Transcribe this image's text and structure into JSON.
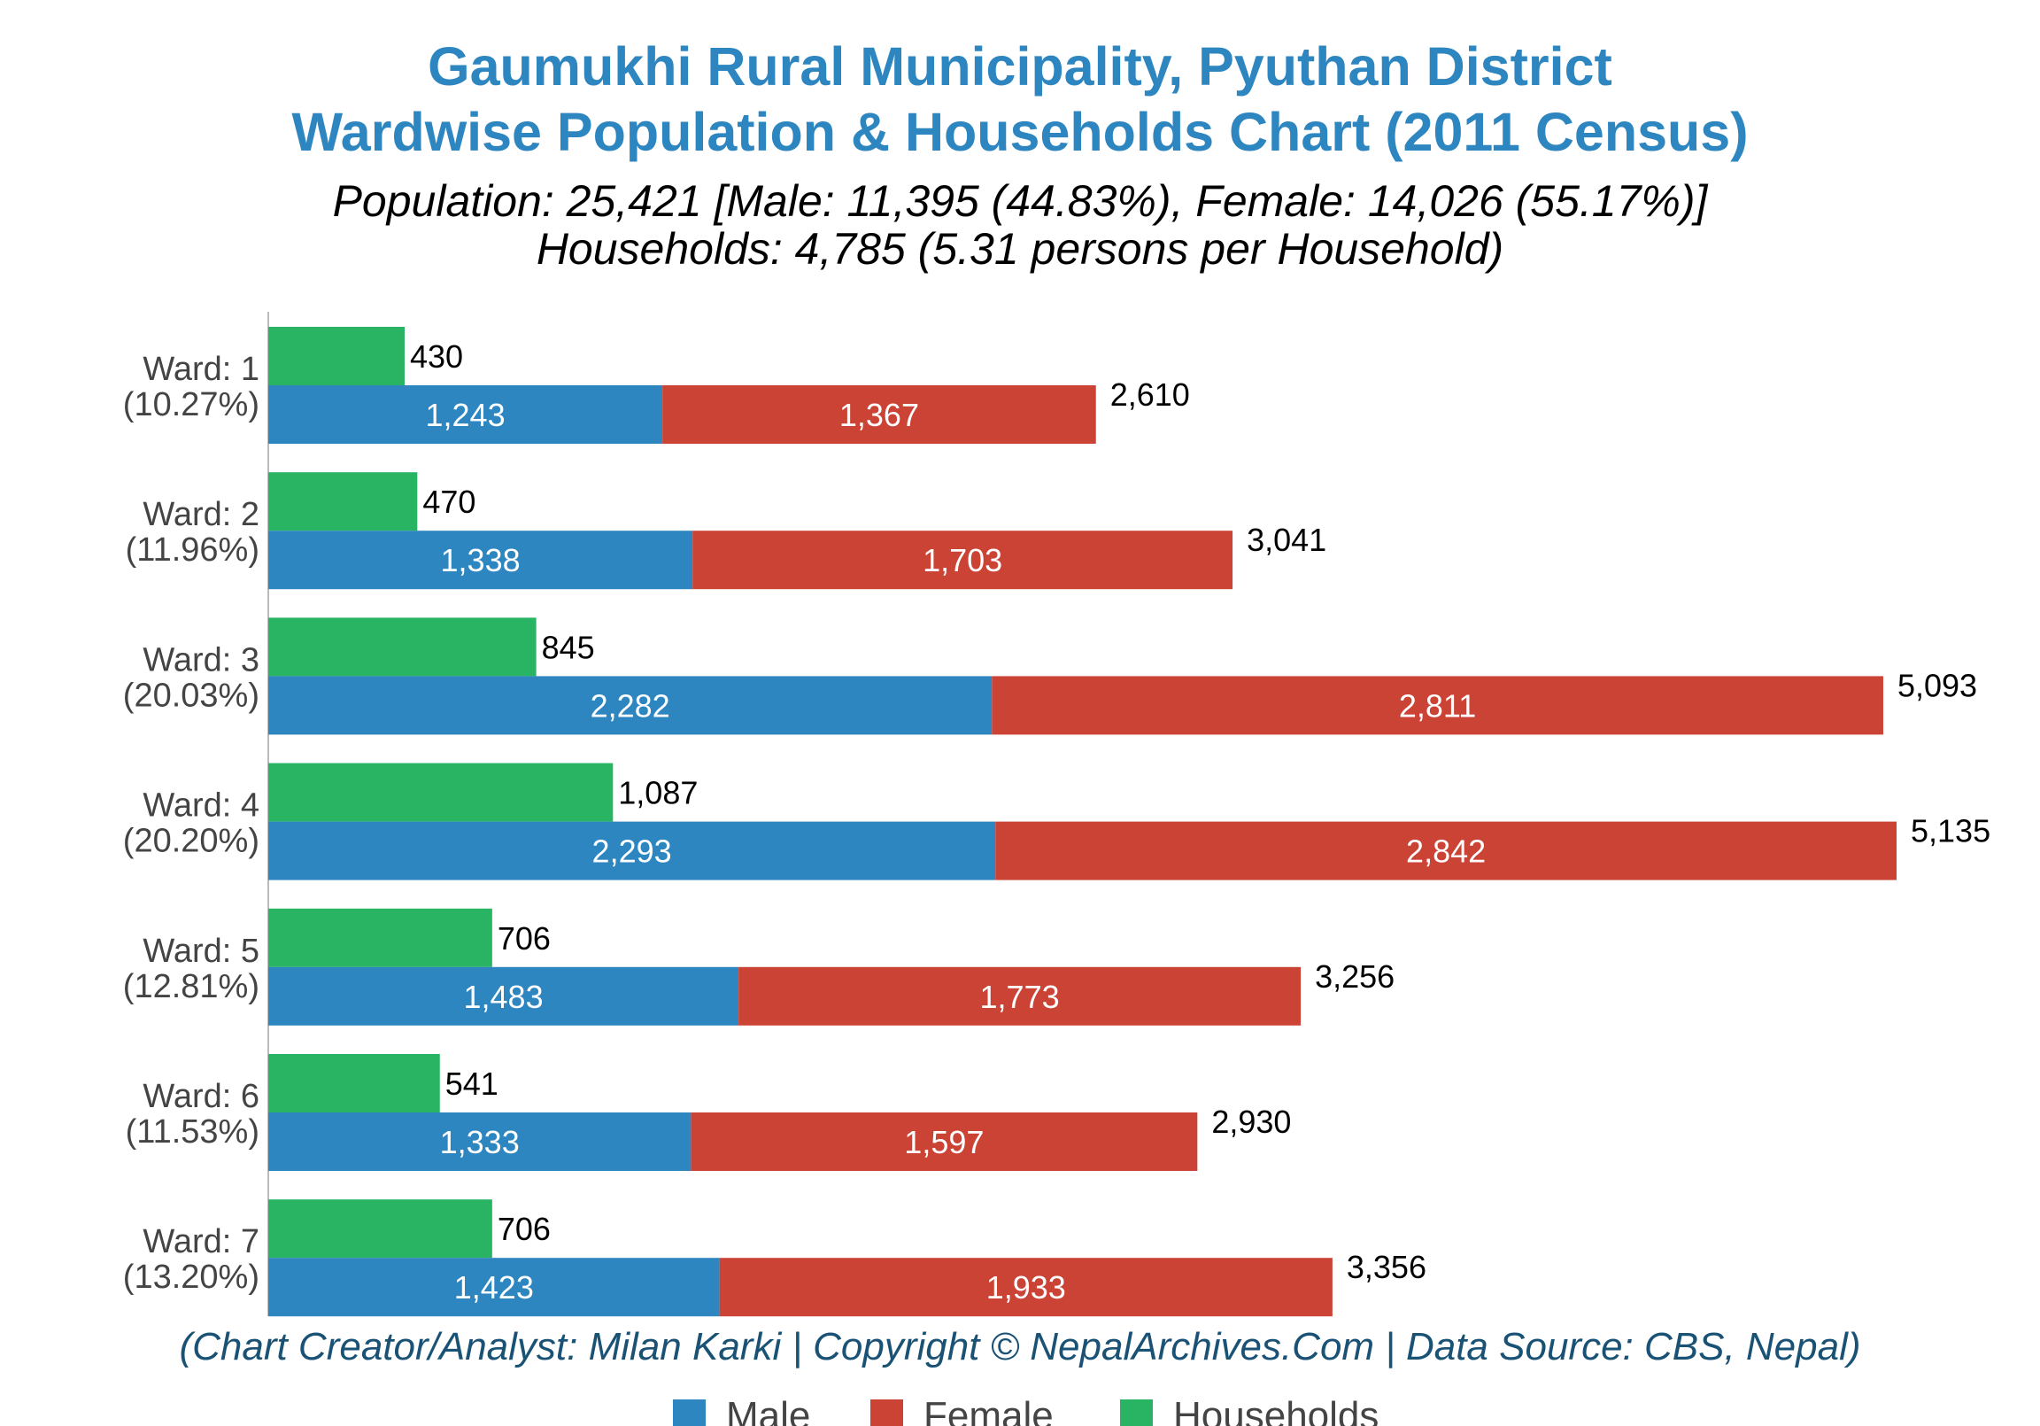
{
  "chart_data": {
    "type": "bar",
    "orientation": "horizontal",
    "title": [
      "Gaumukhi Rural Municipality, Pyuthan District",
      "Wardwise Population & Households Chart (2011 Census)"
    ],
    "subtitle": [
      "Population: 25,421 [Male: 11,395 (44.83%), Female: 14,026 (55.17%)]",
      "Households: 4,785 (5.31 persons per Household)"
    ],
    "categories": [
      {
        "ward": "Ward: 1",
        "share": "(10.27%)"
      },
      {
        "ward": "Ward: 2",
        "share": "(11.96%)"
      },
      {
        "ward": "Ward: 3",
        "share": "(20.03%)"
      },
      {
        "ward": "Ward: 4",
        "share": "(20.20%)"
      },
      {
        "ward": "Ward: 5",
        "share": "(12.81%)"
      },
      {
        "ward": "Ward: 6",
        "share": "(11.53%)"
      },
      {
        "ward": "Ward: 7",
        "share": "(13.20%)"
      }
    ],
    "series": [
      {
        "name": "Male",
        "color": "#2e86c1",
        "values": [
          1243,
          1338,
          2282,
          2293,
          1483,
          1333,
          1423
        ],
        "labels": [
          "1,243",
          "1,338",
          "2,282",
          "2,293",
          "1,483",
          "1,333",
          "1,423"
        ]
      },
      {
        "name": "Female",
        "color": "#cb4335",
        "values": [
          1367,
          1703,
          2811,
          2842,
          1773,
          1597,
          1933
        ],
        "labels": [
          "1,367",
          "1,703",
          "2,811",
          "2,842",
          "1,773",
          "1,597",
          "1,933"
        ]
      },
      {
        "name": "Households",
        "color": "#28b463",
        "values": [
          430,
          470,
          845,
          1087,
          706,
          541,
          706
        ],
        "labels": [
          "430",
          "470",
          "845",
          "1,087",
          "706",
          "541",
          "706"
        ]
      }
    ],
    "totals": {
      "values": [
        2610,
        3041,
        5093,
        5135,
        3256,
        2930,
        3356
      ],
      "labels": [
        "2,610",
        "3,041",
        "5,093",
        "5,135",
        "3,256",
        "2,930",
        "3,356"
      ]
    },
    "xlim": [
      0,
      5500
    ],
    "grid": false,
    "legend_position": "bottom-center",
    "caption": "(Chart Creator/Analyst: Milan Karki | Copyright © NepalArchives.Com | Data Source: CBS, Nepal)",
    "colors": {
      "title": "#2e86c1",
      "subtitle": "#000000",
      "tick": "#444444",
      "caption": "#1a5276",
      "legend_text": "#444444",
      "axis": "#bbbbbb"
    }
  }
}
